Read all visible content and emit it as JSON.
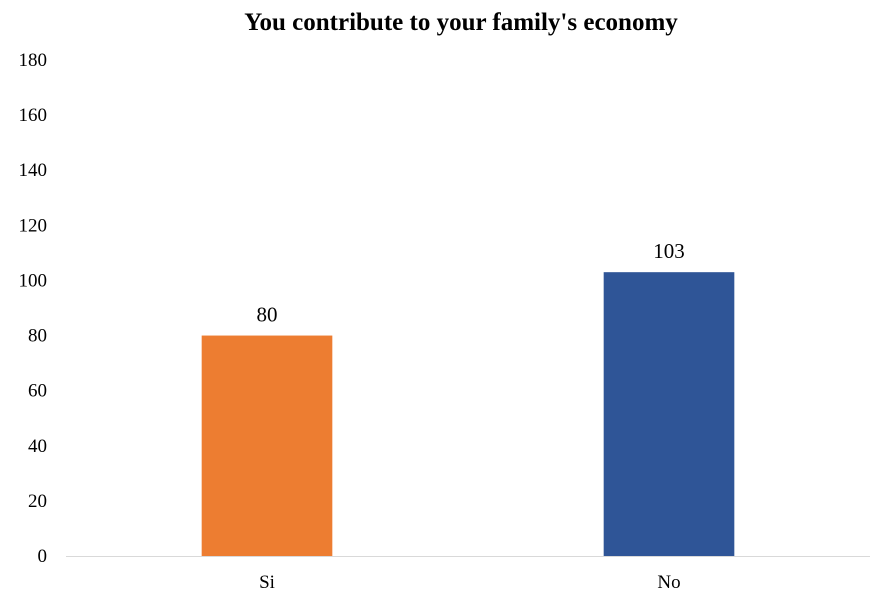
{
  "chart_data": {
    "type": "bar",
    "title": "You contribute to your family's economy",
    "categories": [
      "Si",
      "No"
    ],
    "values": [
      80,
      103
    ],
    "data_labels": [
      "80",
      "103"
    ],
    "bar_colors": [
      "#ED7D31",
      "#2F5597"
    ],
    "ylim": [
      0,
      180
    ],
    "y_ticks": [
      "0",
      "20",
      "40",
      "60",
      "80",
      "100",
      "120",
      "140",
      "160",
      "180"
    ],
    "xlabel": "",
    "ylabel": "",
    "grid": false,
    "legend": "none",
    "axis_color": "#D9D9D9"
  }
}
